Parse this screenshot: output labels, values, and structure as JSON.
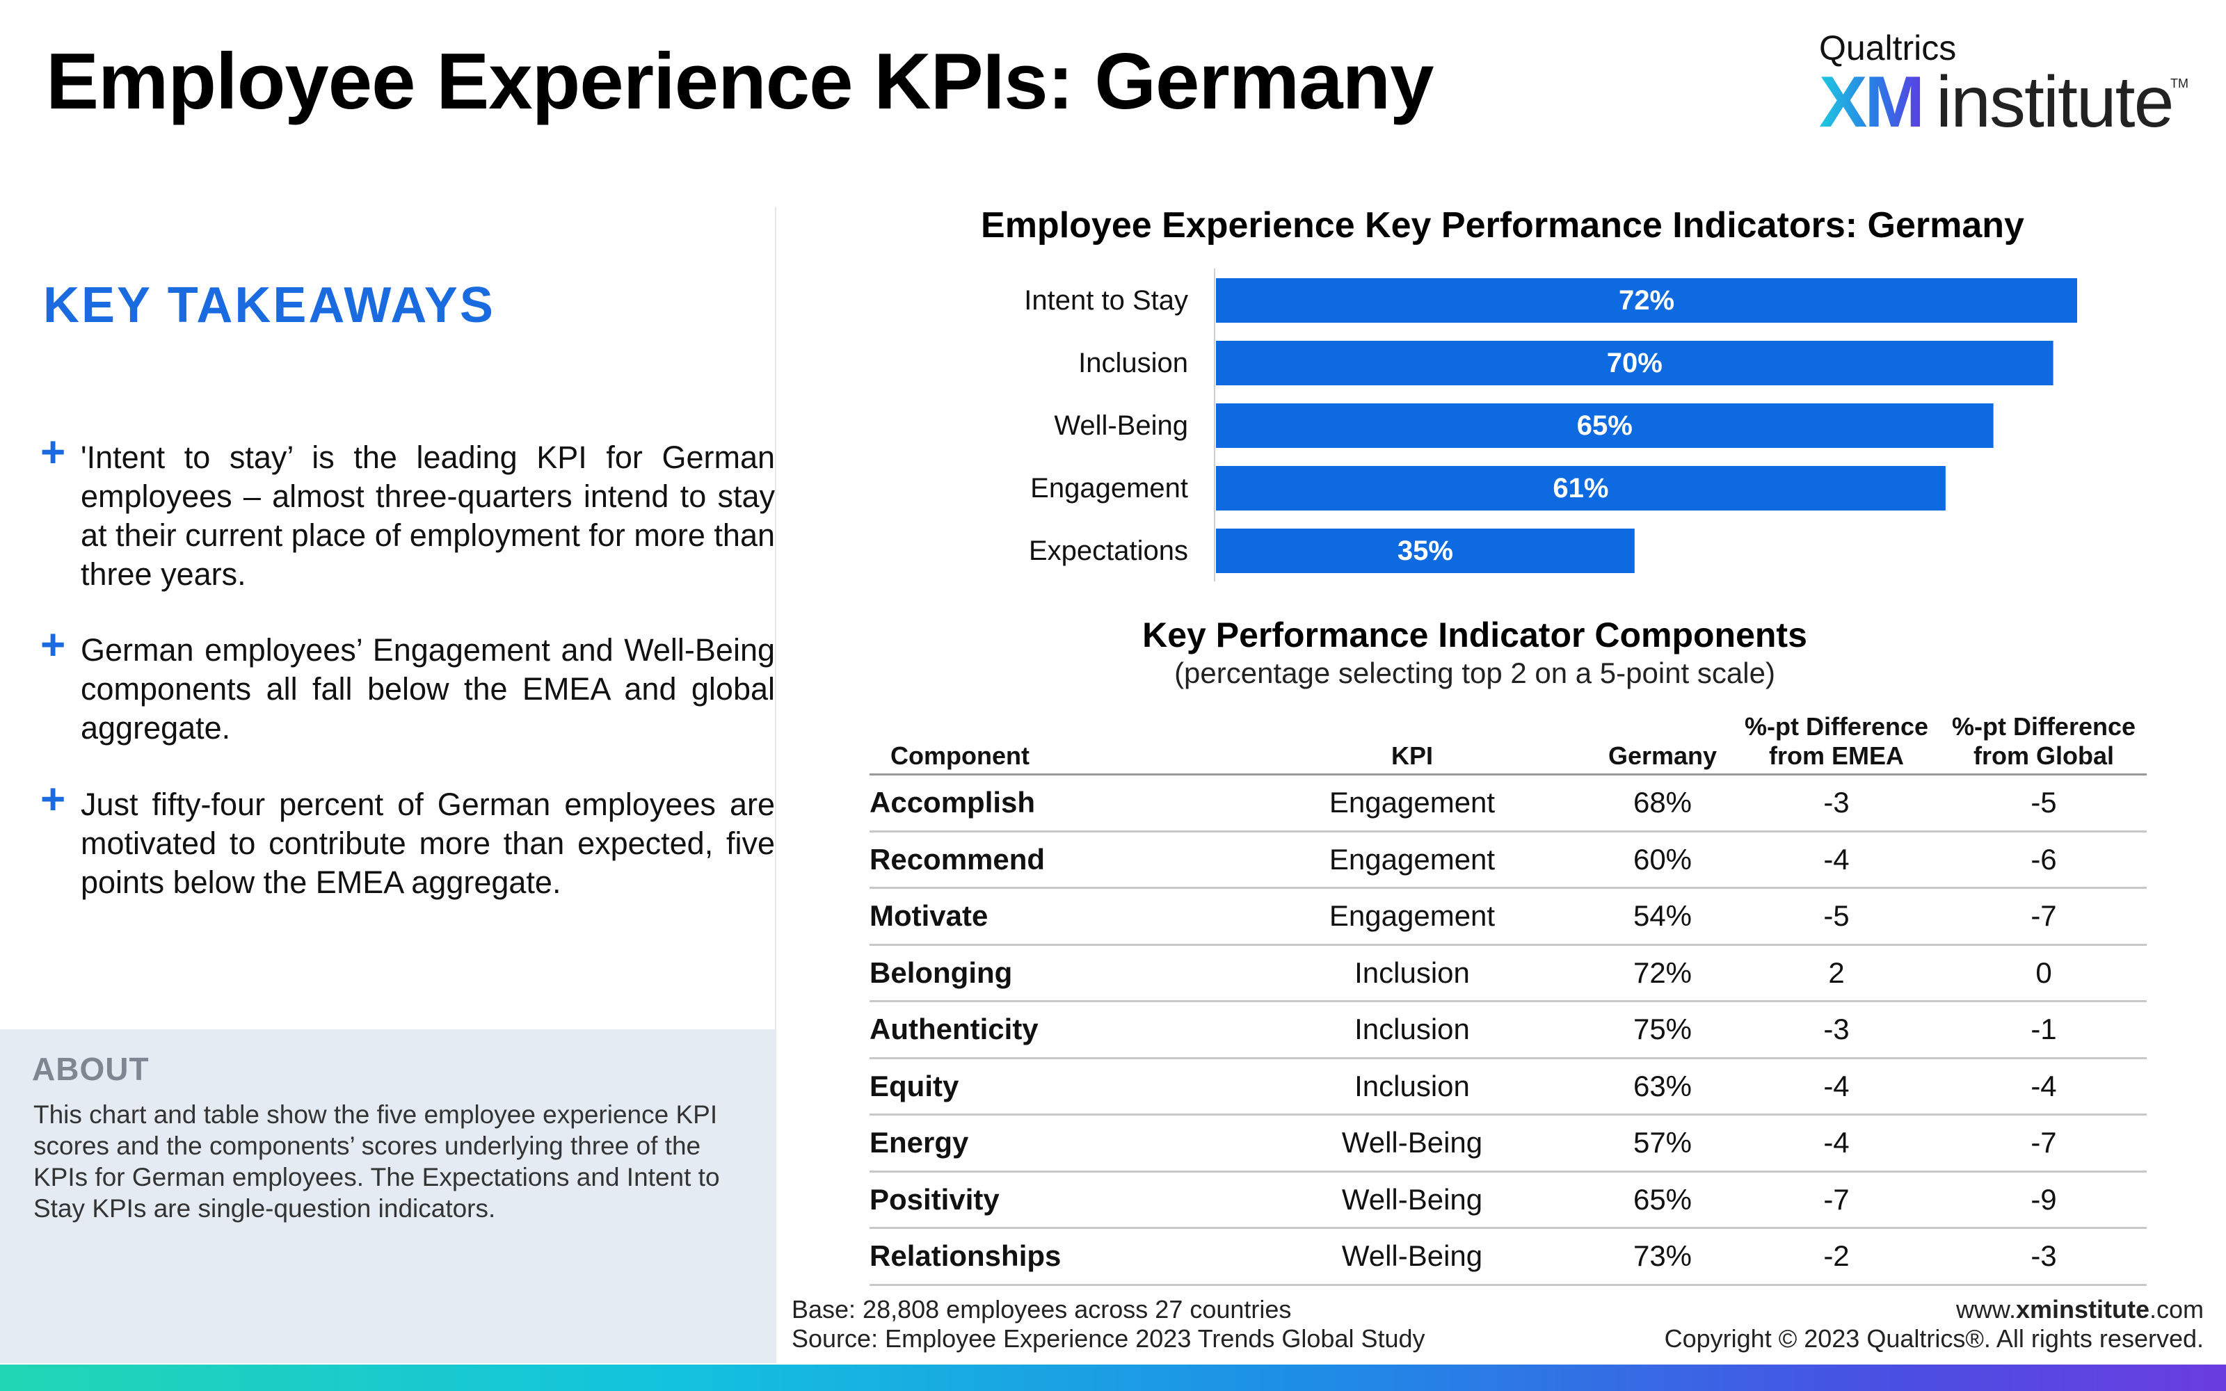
{
  "header": {
    "title": "Employee Experience KPIs: Germany",
    "logo": {
      "top": "Qualtrics",
      "xm": "XM",
      "institute": "institute",
      "tm": "TM"
    }
  },
  "takeaways": {
    "heading": "KEY TAKEAWAYS",
    "items": [
      "'Intent to stay’ is the leading KPI for German employees – almost three-quarters intend to stay at their current place of employment for more than three years.",
      "German employees’ Engagement and Well-Being components all fall below the EMEA and global aggregate.",
      "Just fifty-four percent of German employees are motivated to contribute more than expected, five points below the EMEA aggregate."
    ]
  },
  "about": {
    "heading": "ABOUT",
    "text": "This chart and table show the five employee experience KPI scores and the components’ scores underlying three of the KPIs for German employees. The Expectations and Intent to Stay KPIs are single-question indicators."
  },
  "chart_data": {
    "type": "bar",
    "orientation": "horizontal",
    "title": "Employee Experience Key Performance Indicators: Germany",
    "categories": [
      "Intent to Stay",
      "Inclusion",
      "Well-Being",
      "Engagement",
      "Expectations"
    ],
    "values": [
      72,
      70,
      65,
      61,
      35
    ],
    "value_labels": [
      "72%",
      "70%",
      "65%",
      "61%",
      "35%"
    ],
    "xlim": [
      0,
      72
    ],
    "bar_color": "#0d6ae0",
    "label_color": "#ffffff"
  },
  "table": {
    "title": "Key Performance Indicator Components",
    "subtitle": "(percentage selecting top 2 on a 5-point scale)",
    "headers": [
      "Component",
      "KPI",
      "Germany",
      "%-pt Difference from EMEA",
      "%-pt Difference from Global"
    ],
    "rows": [
      [
        "Accomplish",
        "Engagement",
        "68%",
        "-3",
        "-5"
      ],
      [
        "Recommend",
        "Engagement",
        "60%",
        "-4",
        "-6"
      ],
      [
        "Motivate",
        "Engagement",
        "54%",
        "-5",
        "-7"
      ],
      [
        "Belonging",
        "Inclusion",
        "72%",
        "2",
        "0"
      ],
      [
        "Authenticity",
        "Inclusion",
        "75%",
        "-3",
        "-1"
      ],
      [
        "Equity",
        "Inclusion",
        "63%",
        "-4",
        "-4"
      ],
      [
        "Energy",
        "Well-Being",
        "57%",
        "-4",
        "-7"
      ],
      [
        "Positivity",
        "Well-Being",
        "65%",
        "-7",
        "-9"
      ],
      [
        "Relationships",
        "Well-Being",
        "73%",
        "-2",
        "-3"
      ]
    ]
  },
  "footer": {
    "base": "Base: 28,808 employees across 27 countries",
    "source": "Source: Employee Experience 2023 Trends Global Study",
    "site_prefix": "www.",
    "site_bold": "xminstitute",
    "site_suffix": ".com",
    "copyright": "Copyright © 2023 Qualtrics®. All rights reserved."
  },
  "colors": {
    "accent": "#1a6be0",
    "bar": "#0d6ae0",
    "about_bg": "#e4ebf3"
  }
}
